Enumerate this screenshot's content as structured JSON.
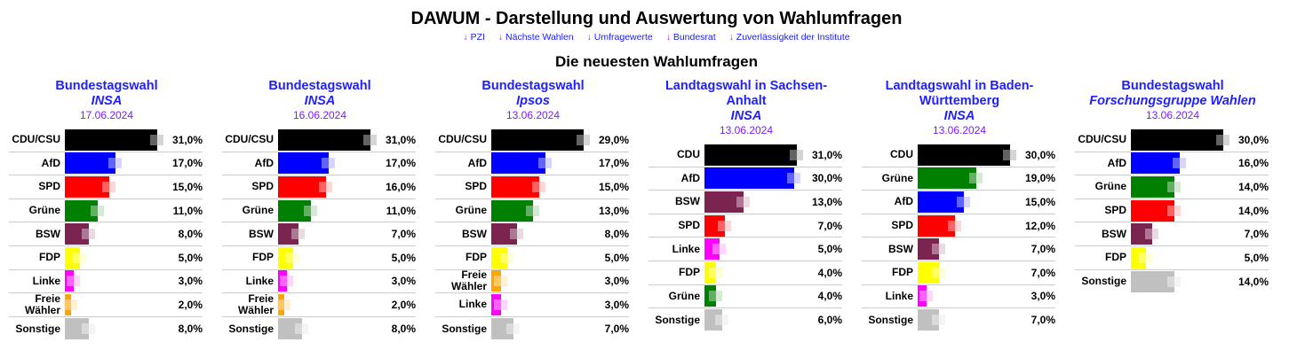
{
  "header": {
    "title": "DAWUM - Darstellung und Auswertung von Wahlumfragen",
    "nav_arrow": "↓",
    "nav": [
      "PZI",
      "Nächste Wahlen",
      "Umfragewerte",
      "Bundesrat",
      "Zuverlässigkeit der Institute"
    ],
    "subtitle": "Die neuesten Wahlumfragen"
  },
  "panels": [
    {
      "title": "Bundestagswahl",
      "institute": "INSA",
      "date": "17.06.2024",
      "rows": [
        {
          "party": "CDU/CSU",
          "value": 31,
          "display": "31,0%",
          "prev": 31,
          "color": "#000000"
        },
        {
          "party": "AfD",
          "value": 17,
          "display": "17,0%",
          "prev": 17,
          "color": "#0000ff"
        },
        {
          "party": "SPD",
          "value": 15,
          "display": "15,0%",
          "prev": 15,
          "color": "#ff0000"
        },
        {
          "party": "Grüne",
          "value": 11,
          "display": "11,0%",
          "prev": 11,
          "color": "#008000"
        },
        {
          "party": "BSW",
          "value": 8,
          "display": "8,0%",
          "prev": 8,
          "color": "#7b2450"
        },
        {
          "party": "FDP",
          "value": 5,
          "display": "5,0%",
          "prev": 5,
          "color": "#ffff00"
        },
        {
          "party": "Linke",
          "value": 3,
          "display": "3,0%",
          "prev": 3,
          "color": "#ff00ff"
        },
        {
          "party": "Freie Wähler",
          "value": 2,
          "display": "2,0%",
          "prev": 2,
          "color": "#ffa500"
        },
        {
          "party": "Sonstige",
          "value": 8,
          "display": "8,0%",
          "prev": 8,
          "color": "#c0c0c0"
        }
      ]
    },
    {
      "title": "Bundestagswahl",
      "institute": "INSA",
      "date": "16.06.2024",
      "rows": [
        {
          "party": "CDU/CSU",
          "value": 31,
          "display": "31,0%",
          "prev": 31,
          "color": "#000000"
        },
        {
          "party": "AfD",
          "value": 17,
          "display": "17,0%",
          "prev": 17,
          "color": "#0000ff"
        },
        {
          "party": "SPD",
          "value": 16,
          "display": "16,0%",
          "prev": 16,
          "color": "#ff0000"
        },
        {
          "party": "Grüne",
          "value": 11,
          "display": "11,0%",
          "prev": 11,
          "color": "#008000"
        },
        {
          "party": "BSW",
          "value": 7,
          "display": "7,0%",
          "prev": 7,
          "color": "#7b2450"
        },
        {
          "party": "FDP",
          "value": 5,
          "display": "5,0%",
          "prev": 5,
          "color": "#ffff00"
        },
        {
          "party": "Linke",
          "value": 3,
          "display": "3,0%",
          "prev": 3,
          "color": "#ff00ff"
        },
        {
          "party": "Freie Wähler",
          "value": 2,
          "display": "2,0%",
          "prev": 2,
          "color": "#ffa500"
        },
        {
          "party": "Sonstige",
          "value": 8,
          "display": "8,0%",
          "prev": 8,
          "color": "#c0c0c0"
        }
      ]
    },
    {
      "title": "Bundestagswahl",
      "institute": "Ipsos",
      "date": "13.06.2024",
      "rows": [
        {
          "party": "CDU/CSU",
          "value": 29,
          "display": "29,0%",
          "prev": 29,
          "color": "#000000"
        },
        {
          "party": "AfD",
          "value": 17,
          "display": "17,0%",
          "prev": 17,
          "color": "#0000ff"
        },
        {
          "party": "SPD",
          "value": 15,
          "display": "15,0%",
          "prev": 15,
          "color": "#ff0000"
        },
        {
          "party": "Grüne",
          "value": 13,
          "display": "13,0%",
          "prev": 13,
          "color": "#008000"
        },
        {
          "party": "BSW",
          "value": 8,
          "display": "8,0%",
          "prev": 8,
          "color": "#7b2450"
        },
        {
          "party": "FDP",
          "value": 5,
          "display": "5,0%",
          "prev": 5,
          "color": "#ffff00"
        },
        {
          "party": "Freie Wähler",
          "value": 3,
          "display": "3,0%",
          "prev": 3,
          "color": "#ffa500"
        },
        {
          "party": "Linke",
          "value": 3,
          "display": "3,0%",
          "prev": 3,
          "color": "#ff00ff"
        },
        {
          "party": "Sonstige",
          "value": 7,
          "display": "7,0%",
          "prev": 7,
          "color": "#c0c0c0"
        }
      ]
    },
    {
      "title": "Landtagswahl in Sachsen-Anhalt",
      "institute": "INSA",
      "date": "13.06.2024",
      "rows": [
        {
          "party": "CDU",
          "value": 31,
          "display": "31,0%",
          "prev": 31,
          "color": "#000000"
        },
        {
          "party": "AfD",
          "value": 30,
          "display": "30,0%",
          "prev": 30,
          "color": "#0000ff"
        },
        {
          "party": "BSW",
          "value": 13,
          "display": "13,0%",
          "prev": 13,
          "color": "#7b2450"
        },
        {
          "party": "SPD",
          "value": 7,
          "display": "7,0%",
          "prev": 7,
          "color": "#ff0000"
        },
        {
          "party": "Linke",
          "value": 5,
          "display": "5,0%",
          "prev": 5,
          "color": "#ff00ff"
        },
        {
          "party": "FDP",
          "value": 4,
          "display": "4,0%",
          "prev": 4,
          "color": "#ffff00"
        },
        {
          "party": "Grüne",
          "value": 4,
          "display": "4,0%",
          "prev": 4,
          "color": "#008000"
        },
        {
          "party": "Sonstige",
          "value": 6,
          "display": "6,0%",
          "prev": 6,
          "color": "#c0c0c0"
        }
      ]
    },
    {
      "title": "Landtagswahl in Baden-Württemberg",
      "institute": "INSA",
      "date": "13.06.2024",
      "rows": [
        {
          "party": "CDU",
          "value": 30,
          "display": "30,0%",
          "prev": 30,
          "color": "#000000"
        },
        {
          "party": "Grüne",
          "value": 19,
          "display": "19,0%",
          "prev": 19,
          "color": "#008000"
        },
        {
          "party": "AfD",
          "value": 15,
          "display": "15,0%",
          "prev": 15,
          "color": "#0000ff"
        },
        {
          "party": "SPD",
          "value": 12,
          "display": "12,0%",
          "prev": 12,
          "color": "#ff0000"
        },
        {
          "party": "BSW",
          "value": 7,
          "display": "7,0%",
          "prev": 7,
          "color": "#7b2450"
        },
        {
          "party": "FDP",
          "value": 7,
          "display": "7,0%",
          "prev": 7,
          "color": "#ffff00"
        },
        {
          "party": "Linke",
          "value": 3,
          "display": "3,0%",
          "prev": 3,
          "color": "#ff00ff"
        },
        {
          "party": "Sonstige",
          "value": 7,
          "display": "7,0%",
          "prev": 7,
          "color": "#c0c0c0"
        }
      ]
    },
    {
      "title": "Bundestagswahl",
      "institute": "Forschungsgruppe Wahlen",
      "date": "13.06.2024",
      "rows": [
        {
          "party": "CDU/CSU",
          "value": 30,
          "display": "30,0%",
          "prev": 30,
          "color": "#000000"
        },
        {
          "party": "AfD",
          "value": 16,
          "display": "16,0%",
          "prev": 16,
          "color": "#0000ff"
        },
        {
          "party": "Grüne",
          "value": 14,
          "display": "14,0%",
          "prev": 14,
          "color": "#008000"
        },
        {
          "party": "SPD",
          "value": 14,
          "display": "14,0%",
          "prev": 14,
          "color": "#ff0000"
        },
        {
          "party": "BSW",
          "value": 7,
          "display": "7,0%",
          "prev": 7,
          "color": "#7b2450"
        },
        {
          "party": "FDP",
          "value": 5,
          "display": "5,0%",
          "prev": 5,
          "color": "#ffff00"
        },
        {
          "party": "Sonstige",
          "value": 14,
          "display": "14,0%",
          "prev": 14,
          "color": "#c0c0c0"
        }
      ]
    }
  ]
}
